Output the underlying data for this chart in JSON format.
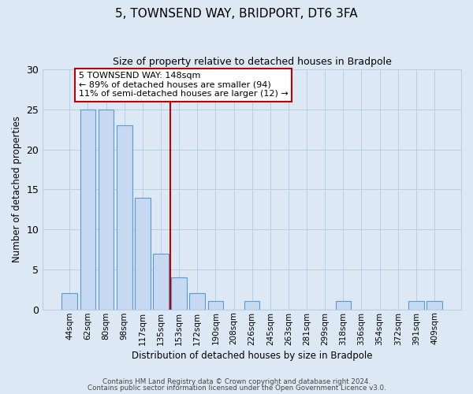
{
  "title": "5, TOWNSEND WAY, BRIDPORT, DT6 3FA",
  "subtitle": "Size of property relative to detached houses in Bradpole",
  "xlabel": "Distribution of detached houses by size in Bradpole",
  "ylabel": "Number of detached properties",
  "bar_labels": [
    "44sqm",
    "62sqm",
    "80sqm",
    "98sqm",
    "117sqm",
    "135sqm",
    "153sqm",
    "172sqm",
    "190sqm",
    "208sqm",
    "226sqm",
    "245sqm",
    "263sqm",
    "281sqm",
    "299sqm",
    "318sqm",
    "336sqm",
    "354sqm",
    "372sqm",
    "391sqm",
    "409sqm"
  ],
  "bar_heights": [
    2,
    25,
    25,
    23,
    14,
    7,
    4,
    2,
    1,
    0,
    1,
    0,
    0,
    0,
    0,
    1,
    0,
    0,
    0,
    1,
    1
  ],
  "bar_color": "#c6d9f0",
  "bar_edge_color": "#5b9bd5",
  "bg_color": "#dce9f5",
  "grid_color": "#b8cfe8",
  "vline_color": "#c00000",
  "vline_x_index": 6,
  "annotation_line1": "5 TOWNSEND WAY: 148sqm",
  "annotation_line2": "← 89% of detached houses are smaller (94)",
  "annotation_line3": "11% of semi-detached houses are larger (12) →",
  "annotation_box_fc": "#ffffff",
  "annotation_box_ec": "#c00000",
  "ylim_max": 30,
  "yticks": [
    0,
    5,
    10,
    15,
    20,
    25,
    30
  ],
  "footnote1": "Contains HM Land Registry data © Crown copyright and database right 2024.",
  "footnote2": "Contains public sector information licensed under the Open Government Licence v3.0."
}
